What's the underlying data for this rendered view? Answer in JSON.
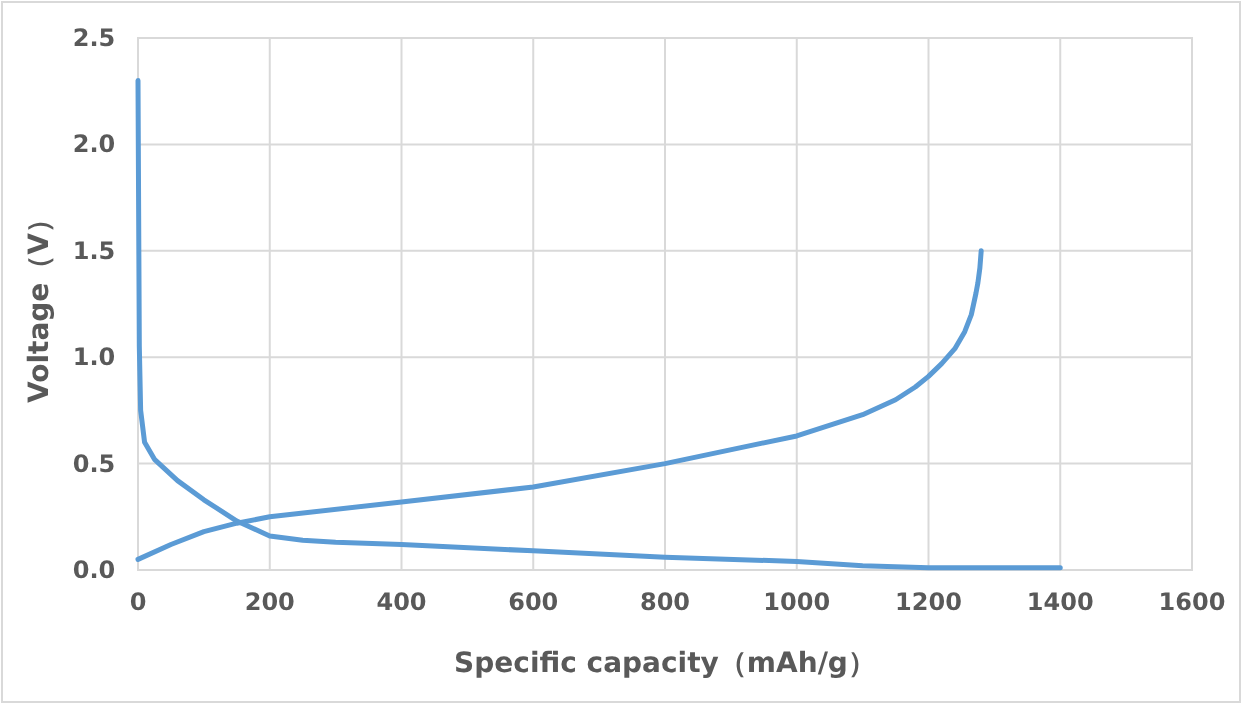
{
  "chart_data": {
    "type": "line",
    "xlabel": "Specific capacity（mAh/g）",
    "ylabel": "Voltage（V）",
    "xlim": [
      0,
      1600
    ],
    "xticks": [
      0,
      200,
      400,
      600,
      800,
      1000,
      1200,
      1400,
      1600
    ],
    "ylim": [
      0,
      2.5
    ],
    "yticks": [
      {
        "value": 0,
        "label": "0.0"
      },
      {
        "value": 0.5,
        "label": "0.5"
      },
      {
        "value": 1,
        "label": "1.0"
      },
      {
        "value": 1.5,
        "label": "1.5"
      },
      {
        "value": 2,
        "label": "2.0"
      },
      {
        "value": 2.5,
        "label": "2.5"
      }
    ],
    "grid": true,
    "marker": "none",
    "line_style": "solid",
    "series": [
      {
        "color": "#5b9bd5",
        "x": [
          0,
          2,
          4,
          10,
          25,
          60,
          100,
          150,
          200,
          250,
          300,
          400,
          600,
          800,
          1000,
          1100,
          1200,
          1400
        ],
        "values": [
          2.3,
          1.05,
          0.75,
          0.6,
          0.52,
          0.42,
          0.33,
          0.23,
          0.16,
          0.14,
          0.13,
          0.12,
          0.09,
          0.06,
          0.04,
          0.02,
          0.01,
          0.01
        ]
      },
      {
        "color": "#5b9bd5",
        "x": [
          0,
          50,
          100,
          150,
          200,
          400,
          600,
          800,
          1000,
          1100,
          1150,
          1180,
          1200,
          1220,
          1240,
          1255,
          1265,
          1272,
          1275,
          1278,
          1280
        ],
        "values": [
          0.05,
          0.12,
          0.18,
          0.22,
          0.25,
          0.32,
          0.39,
          0.5,
          0.63,
          0.73,
          0.8,
          0.86,
          0.91,
          0.97,
          1.04,
          1.12,
          1.2,
          1.3,
          1.35,
          1.42,
          1.5
        ]
      }
    ]
  }
}
